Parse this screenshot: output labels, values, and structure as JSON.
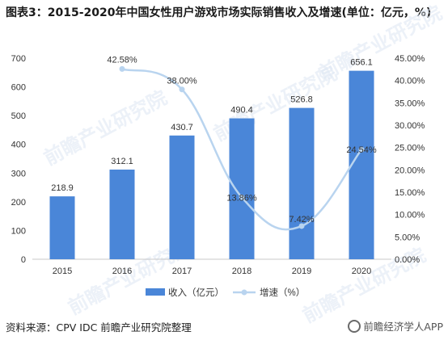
{
  "title": "图表3：2015-2020年中国女性用户游戏市场实际销售收入及增速(单位：亿元，%)",
  "source": "资料来源：CPV IDC 前瞻产业研究院整理",
  "footer": "前瞻经济学人APP",
  "watermark": "前瞻产业研究院",
  "colors": {
    "bar": "#4a86d8",
    "line": "#b9d4ef",
    "grid": "#e3e3e3",
    "text": "#333333"
  },
  "chart_data": {
    "type": "bar",
    "categories": [
      "2015",
      "2016",
      "2017",
      "2018",
      "2019",
      "2020"
    ],
    "series": [
      {
        "name": "收入（亿元）",
        "type": "bar",
        "axis": "left",
        "values": [
          218.9,
          312.1,
          430.7,
          490.4,
          526.8,
          656.1
        ],
        "labels": [
          "218.9",
          "312.1",
          "430.7",
          "490.4",
          "526.8",
          "656.1"
        ]
      },
      {
        "name": "增速（%）",
        "type": "line",
        "axis": "right",
        "values": [
          null,
          42.58,
          38.0,
          13.86,
          7.42,
          24.54
        ],
        "labels": [
          "",
          "42.58%",
          "38.00%",
          "13.86%",
          "7.42%",
          "24.54%"
        ]
      }
    ],
    "y_left": {
      "ylim": [
        0,
        700
      ],
      "ticks": [
        "0",
        "100",
        "200",
        "300",
        "400",
        "500",
        "600",
        "700"
      ]
    },
    "y_right": {
      "ylim": [
        0,
        45
      ],
      "ticks": [
        "0.00%",
        "5.00%",
        "10.00%",
        "15.00%",
        "20.00%",
        "25.00%",
        "30.00%",
        "35.00%",
        "40.00%",
        "45.00%"
      ]
    },
    "grid": false,
    "legend_position": "bottom"
  }
}
